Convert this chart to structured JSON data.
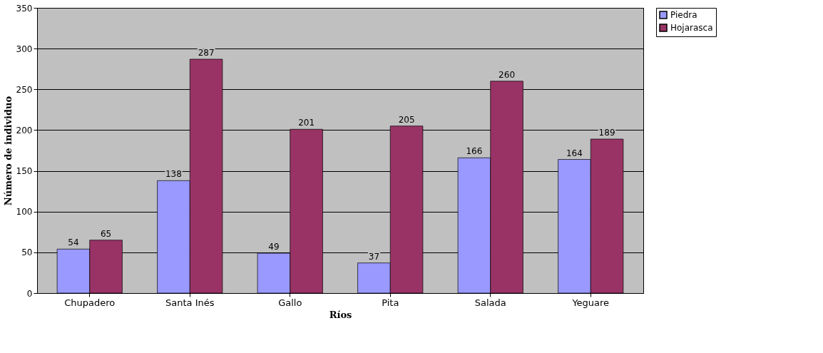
{
  "chart_data": {
    "type": "bar",
    "xlabel": "Ríos",
    "ylabel": "Número de individuo",
    "categories": [
      "Chupadero",
      "Santa Inés",
      "Gallo",
      "Pita",
      "Salada",
      "Yeguare"
    ],
    "series": [
      {
        "name": "Piedra",
        "color": "#9999ff",
        "values": [
          54,
          138,
          49,
          37,
          166,
          164
        ]
      },
      {
        "name": "Hojarasca",
        "color": "#993366",
        "values": [
          65,
          287,
          201,
          205,
          260,
          189
        ]
      }
    ],
    "ylim": [
      0,
      350
    ],
    "yticks": [
      0,
      50,
      100,
      150,
      200,
      250,
      300,
      350
    ],
    "grid": "y",
    "legend": "right",
    "data_labels": true
  }
}
